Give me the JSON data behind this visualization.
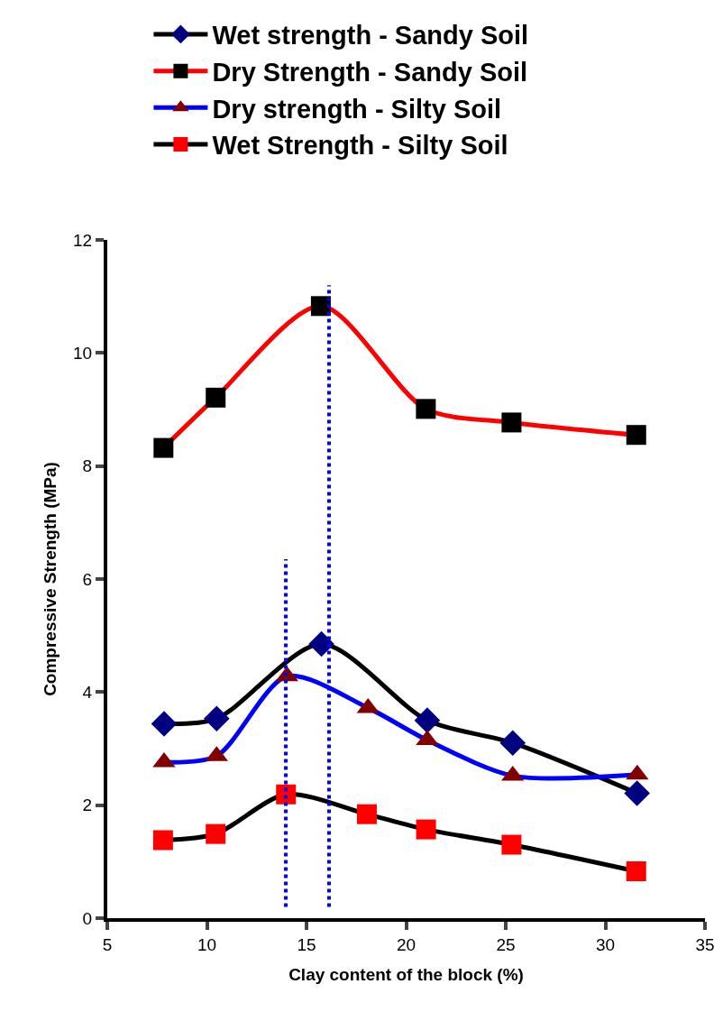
{
  "chart_data": {
    "type": "line",
    "xlabel": "Clay content of the block (%)",
    "ylabel": "Compressive Strength (MPa)",
    "xlim": [
      5,
      35
    ],
    "xticks": [
      5,
      10,
      15,
      20,
      25,
      30,
      35
    ],
    "ylim": [
      0,
      12
    ],
    "yticks": [
      0,
      2,
      4,
      6,
      8,
      10,
      12
    ],
    "grid": false,
    "legend": "top",
    "line_style": "solid",
    "series": [
      {
        "name": "Wet strength - Sandy Soil",
        "color": "#000000",
        "colors": [
          "#000080",
          "#000080",
          "#000080",
          "#000080",
          "#000080",
          "#000080"
        ],
        "marker": "diamond",
        "x": [
          7.85,
          10.49,
          15.75,
          21.06,
          25.35,
          31.59
        ],
        "values": [
          3.44,
          3.53,
          4.85,
          3.5,
          3.1,
          2.21
        ]
      },
      {
        "name": "Dry Strength - Sandy Soil",
        "color": "#ff0000",
        "colors": [
          "#000000",
          "#000000",
          "#000000",
          "#000000",
          "#000000",
          "#000000"
        ],
        "marker": "square",
        "x": [
          7.82,
          10.44,
          15.72,
          20.99,
          25.29,
          31.55
        ],
        "values": [
          8.32,
          9.21,
          10.83,
          9.01,
          8.77,
          8.55
        ]
      },
      {
        "name": "Dry strength - Silty Soil",
        "color": "#0000ff",
        "colors": [
          "#800000",
          "#800000",
          "#800000",
          "#800000",
          "#800000",
          "#800000",
          "#800000"
        ],
        "marker": "triangle",
        "x": [
          7.85,
          10.49,
          14.02,
          18.09,
          21.06,
          25.35,
          31.6
        ],
        "values": [
          2.76,
          2.87,
          4.28,
          3.72,
          3.15,
          2.52,
          2.54
        ]
      },
      {
        "name": "Wet Strength - Silty Soil",
        "color": "#000000",
        "colors": [
          "#ff0000",
          "#ff0000",
          "#ff0000",
          "#ff0000",
          "#ff0000",
          "#ff0000",
          "#ff0000"
        ],
        "marker": "square",
        "x": [
          7.8,
          10.44,
          13.97,
          18.03,
          21.0,
          25.29,
          31.55
        ],
        "values": [
          1.38,
          1.49,
          2.19,
          1.84,
          1.57,
          1.3,
          0.83
        ]
      },
      {
        "color": "#0000ff",
        "marker": "none",
        "line_style": "dotted",
        "x": [
          13.96,
          13.96
        ],
        "values": [
          0.2,
          6.35
        ]
      },
      {
        "color": "#0000ff",
        "marker": "none",
        "line_style": "dotted",
        "x": [
          16.13,
          16.13
        ],
        "values": [
          0.2,
          11.2
        ]
      }
    ]
  }
}
